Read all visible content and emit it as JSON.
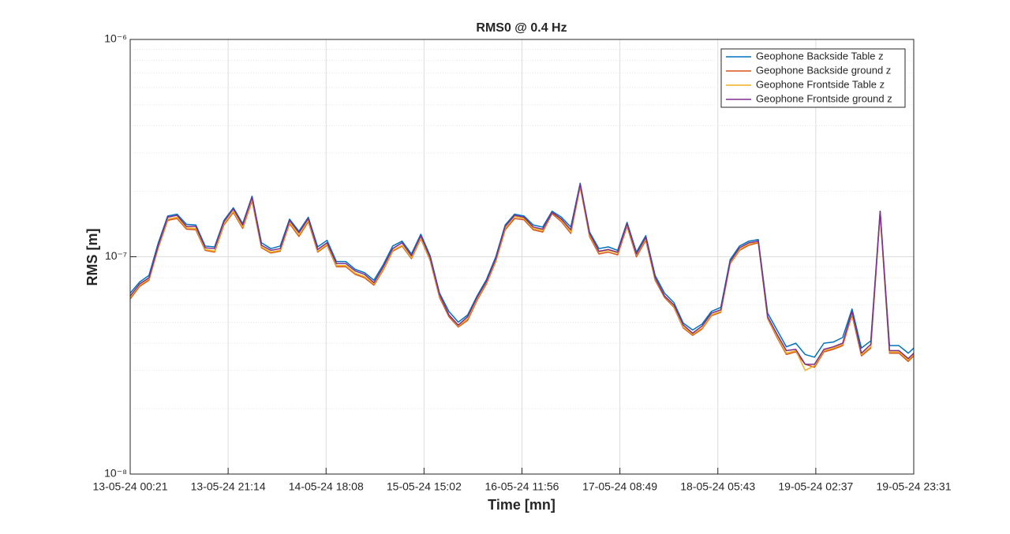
{
  "chart_data": {
    "type": "line",
    "title": "RMS0 @ 0.4 Hz",
    "xlabel": "Time [mn]",
    "ylabel": "RMS [m]",
    "yscale": "log",
    "grid": true,
    "minor_grid": true,
    "legend": "northeast",
    "x": [
      0,
      2,
      4,
      6,
      8,
      10,
      12,
      14,
      16,
      18,
      20,
      22,
      24,
      26,
      28,
      30,
      32,
      34,
      36,
      38,
      40,
      42,
      44,
      46,
      48,
      50,
      52,
      54,
      56,
      58,
      60,
      62,
      64,
      66,
      68,
      70,
      72,
      74,
      76,
      78,
      80,
      82,
      84,
      86,
      88,
      90,
      92,
      94,
      96,
      98,
      100,
      102,
      104,
      106,
      108,
      110,
      112,
      114,
      116,
      118,
      120,
      122,
      124,
      126,
      128,
      130,
      132,
      134,
      136,
      138,
      140,
      142,
      144,
      146,
      148,
      150,
      152,
      154,
      156,
      158,
      160,
      162,
      164,
      166,
      167.167
    ],
    "xlim": [
      0,
      167.167
    ],
    "xticks": [
      {
        "value": 0,
        "label": "13-05-24 00:21"
      },
      {
        "value": 20.896,
        "label": "13-05-24 21:14"
      },
      {
        "value": 41.792,
        "label": "14-05-24 18:08"
      },
      {
        "value": 62.688,
        "label": "15-05-24 15:02"
      },
      {
        "value": 83.583,
        "label": "16-05-24 11:56"
      },
      {
        "value": 104.479,
        "label": "17-05-24 08:49"
      },
      {
        "value": 125.375,
        "label": "18-05-24 05:43"
      },
      {
        "value": 146.271,
        "label": "19-05-24 02:37"
      },
      {
        "value": 167.167,
        "label": "19-05-24 23:31"
      }
    ],
    "ylim": [
      1e-08,
      1e-06
    ],
    "yticks": [
      {
        "value": 1e-08,
        "label": "10⁻⁸"
      },
      {
        "value": 1e-07,
        "label": "10⁻⁷"
      },
      {
        "value": 1e-06,
        "label": "10⁻⁶"
      }
    ],
    "series": [
      {
        "name": "Geophone Backside Table z",
        "color": "#0072bd",
        "values": [
          6.8e-08,
          7.65e-08,
          8.2e-08,
          1.16e-07,
          1.54e-07,
          1.57e-07,
          1.41e-07,
          1.4e-07,
          1.12e-07,
          1.11e-07,
          1.47e-07,
          1.68e-07,
          1.42e-07,
          1.9e-07,
          1.16e-07,
          1.09e-07,
          1.12e-07,
          1.49e-07,
          1.31e-07,
          1.52e-07,
          1.11e-07,
          1.19e-07,
          9.5e-08,
          9.5e-08,
          8.75e-08,
          8.45e-08,
          7.8e-08,
          9.2e-08,
          1.12e-07,
          1.18e-07,
          1.03e-07,
          1.27e-07,
          1.01e-07,
          6.8e-08,
          5.6e-08,
          5e-08,
          5.4e-08,
          6.6e-08,
          7.85e-08,
          1e-07,
          1.4e-07,
          1.57e-07,
          1.54e-07,
          1.4e-07,
          1.37e-07,
          1.62e-07,
          1.52e-07,
          1.37e-07,
          2.18e-07,
          1.3e-07,
          1.09e-07,
          1.11e-07,
          1.07e-07,
          1.44e-07,
          1.05e-07,
          1.25e-07,
          8.2e-08,
          6.8e-08,
          6.15e-08,
          4.95e-08,
          4.6e-08,
          4.9e-08,
          5.6e-08,
          5.85e-08,
          9.7e-08,
          1.12e-07,
          1.18e-07,
          1.2e-07,
          5.5e-08,
          4.6e-08,
          3.85e-08,
          4e-08,
          3.55e-08,
          3.45e-08,
          4e-08,
          4.05e-08,
          4.25e-08,
          5.75e-08,
          3.8e-08,
          4.1e-08,
          1.62e-07,
          3.9e-08,
          3.9e-08,
          3.6e-08,
          3.8e-08
        ]
      },
      {
        "name": "Geophone Backside ground z",
        "color": "#d95319",
        "values": [
          6.4e-08,
          7.3e-08,
          7.8e-08,
          1.1e-07,
          1.47e-07,
          1.5e-07,
          1.34e-07,
          1.33e-07,
          1.07e-07,
          1.05e-07,
          1.4e-07,
          1.6e-07,
          1.35e-07,
          1.81e-07,
          1.1e-07,
          1.04e-07,
          1.06e-07,
          1.42e-07,
          1.24e-07,
          1.45e-07,
          1.05e-07,
          1.13e-07,
          9e-08,
          9e-08,
          8.3e-08,
          8e-08,
          7.4e-08,
          8.7e-08,
          1.06e-07,
          1.12e-07,
          9.8e-08,
          1.21e-07,
          9.6e-08,
          6.5e-08,
          5.3e-08,
          4.75e-08,
          5.1e-08,
          6.3e-08,
          7.5e-08,
          9.5e-08,
          1.33e-07,
          1.5e-07,
          1.48e-07,
          1.33e-07,
          1.3e-07,
          1.58e-07,
          1.45e-07,
          1.28e-07,
          2.1e-07,
          1.24e-07,
          1.03e-07,
          1.05e-07,
          1.02e-07,
          1.38e-07,
          1e-07,
          1.19e-07,
          7.8e-08,
          6.5e-08,
          5.85e-08,
          4.7e-08,
          4.35e-08,
          4.65e-08,
          5.35e-08,
          5.55e-08,
          9.3e-08,
          1.07e-07,
          1.13e-07,
          1.16e-07,
          5.2e-08,
          4.25e-08,
          3.55e-08,
          3.65e-08,
          3.2e-08,
          3.1e-08,
          3.65e-08,
          3.75e-08,
          3.9e-08,
          5.4e-08,
          3.5e-08,
          3.8e-08,
          1.58e-07,
          3.6e-08,
          3.6e-08,
          3.3e-08,
          3.5e-08
        ]
      },
      {
        "name": "Geophone Frontside Table z",
        "color": "#edb120",
        "values": [
          6.5e-08,
          7.4e-08,
          7.9e-08,
          1.11e-07,
          1.49e-07,
          1.52e-07,
          1.36e-07,
          1.35e-07,
          1.08e-07,
          1.06e-07,
          1.42e-07,
          1.62e-07,
          1.37e-07,
          1.84e-07,
          1.11e-07,
          1.05e-07,
          1.07e-07,
          1.44e-07,
          1.26e-07,
          1.47e-07,
          1.06e-07,
          1.14e-07,
          9.1e-08,
          9.1e-08,
          8.4e-08,
          8.1e-08,
          7.5e-08,
          8.8e-08,
          1.07e-07,
          1.13e-07,
          9.9e-08,
          1.22e-07,
          9.7e-08,
          6.6e-08,
          5.4e-08,
          4.8e-08,
          5.2e-08,
          6.4e-08,
          7.6e-08,
          9.6e-08,
          1.35e-07,
          1.53e-07,
          1.5e-07,
          1.35e-07,
          1.32e-07,
          1.6e-07,
          1.47e-07,
          1.3e-07,
          2.13e-07,
          1.26e-07,
          1.05e-07,
          1.07e-07,
          1.04e-07,
          1.4e-07,
          1.02e-07,
          1.21e-07,
          7.9e-08,
          6.6e-08,
          5.9e-08,
          4.75e-08,
          4.4e-08,
          4.7e-08,
          5.4e-08,
          5.6e-08,
          9.4e-08,
          1.08e-07,
          1.15e-07,
          1.17e-07,
          5.25e-08,
          4.3e-08,
          3.6e-08,
          3.7e-08,
          3e-08,
          3.15e-08,
          3.7e-08,
          3.8e-08,
          3.95e-08,
          5.5e-08,
          3.55e-08,
          3.85e-08,
          1.6e-07,
          3.65e-08,
          3.65e-08,
          3.35e-08,
          3.55e-08
        ]
      },
      {
        "name": "Geophone Frontside ground z",
        "color": "#7e2f8e",
        "values": [
          6.6e-08,
          7.5e-08,
          8e-08,
          1.13e-07,
          1.52e-07,
          1.55e-07,
          1.38e-07,
          1.38e-07,
          1.1e-07,
          1.09e-07,
          1.45e-07,
          1.66e-07,
          1.4e-07,
          1.88e-07,
          1.13e-07,
          1.07e-07,
          1.09e-07,
          1.47e-07,
          1.29e-07,
          1.5e-07,
          1.08e-07,
          1.16e-07,
          9.3e-08,
          9.3e-08,
          8.6e-08,
          8.3e-08,
          7.6e-08,
          9e-08,
          1.09e-07,
          1.16e-07,
          1.01e-07,
          1.25e-07,
          9.9e-08,
          6.7e-08,
          5.4e-08,
          4.85e-08,
          5.3e-08,
          6.5e-08,
          7.7e-08,
          9.8e-08,
          1.38e-07,
          1.55e-07,
          1.52e-07,
          1.37e-07,
          1.34e-07,
          1.6e-07,
          1.49e-07,
          1.33e-07,
          2.16e-07,
          1.28e-07,
          1.06e-07,
          1.08e-07,
          1.05e-07,
          1.42e-07,
          1.03e-07,
          1.23e-07,
          8e-08,
          6.6e-08,
          6e-08,
          4.85e-08,
          4.45e-08,
          4.8e-08,
          5.5e-08,
          5.7e-08,
          9.5e-08,
          1.1e-07,
          1.16e-07,
          1.18e-07,
          5.3e-08,
          4.4e-08,
          3.7e-08,
          3.75e-08,
          3.2e-08,
          3.2e-08,
          3.75e-08,
          3.85e-08,
          4e-08,
          5.6e-08,
          3.6e-08,
          3.95e-08,
          1.62e-07,
          3.7e-08,
          3.7e-08,
          3.4e-08,
          3.6e-08
        ]
      }
    ]
  }
}
